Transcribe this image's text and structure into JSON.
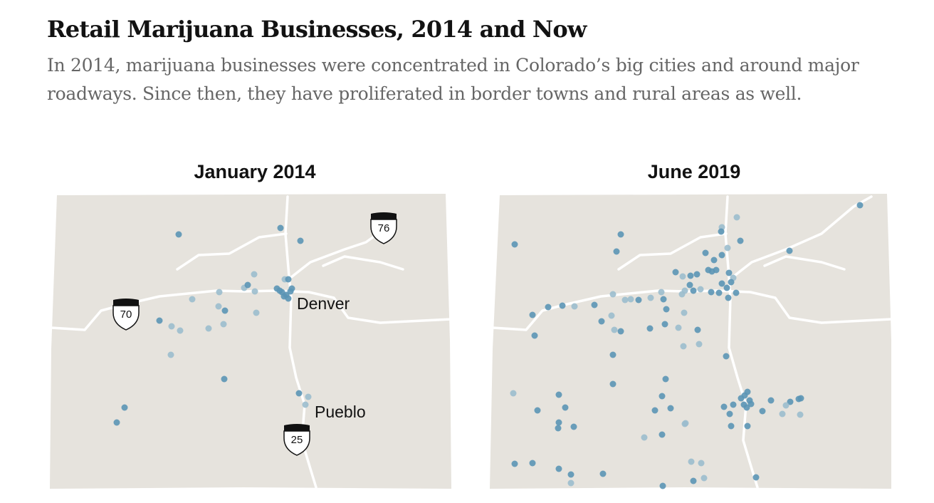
{
  "headline": "Retail Marijuana Businesses, 2014 and Now",
  "dek": "In 2014, marijuana businesses were concentrated in Colorado’s big cities and around major roadways. Since then, they have proliferated in border towns and rural areas as well.",
  "colors": {
    "state_fill": "#e6e3dd",
    "road": "#ffffff",
    "business_dot": "#5b95b5",
    "business_dot_light": "#9bbccd"
  },
  "maps": {
    "left": {
      "title": "January 2014",
      "shields": [
        "70",
        "76",
        "25"
      ],
      "labels": [
        "Denver",
        "Pueblo"
      ]
    },
    "right": {
      "title": "June 2019"
    }
  }
}
